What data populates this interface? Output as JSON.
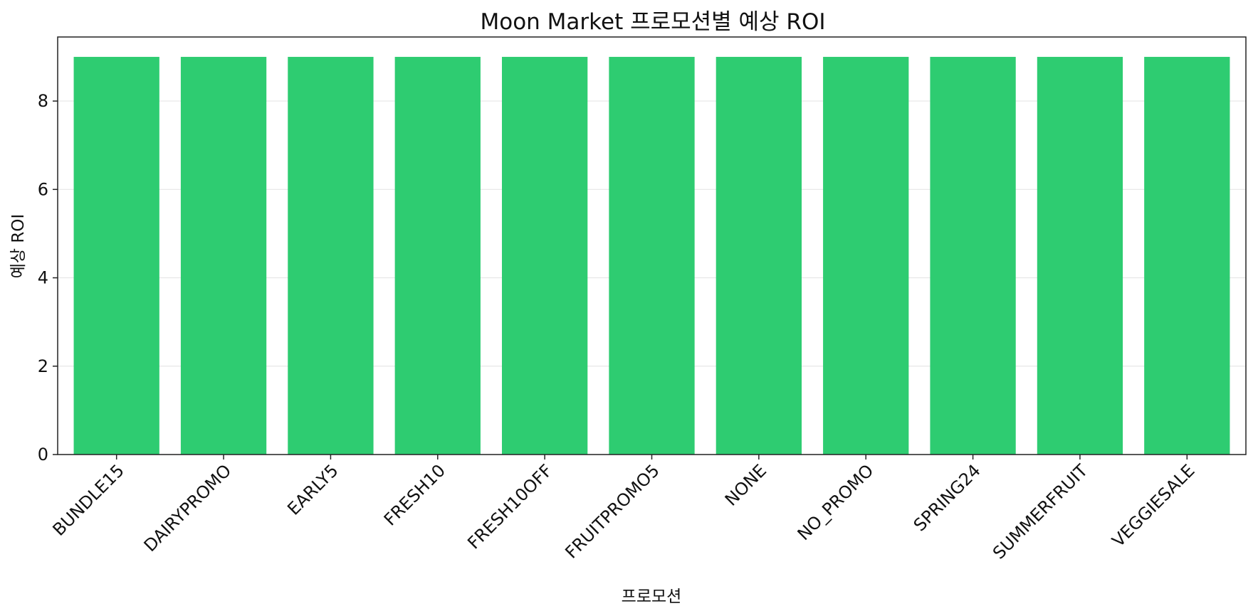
{
  "chart_data": {
    "type": "bar",
    "title": "Moon Market 프로모션별 예상 ROI",
    "xlabel": "프로모션",
    "ylabel": "예상 ROI",
    "categories": [
      "BUNDLE15",
      "DAIRYPROMO",
      "EARLY5",
      "FRESH10",
      "FRESH10OFF",
      "FRUITPROMO5",
      "NONE",
      "NO_PROMO",
      "SPRING24",
      "SUMMERFRUIT",
      "VEGGIESALE"
    ],
    "values": [
      9,
      9,
      9,
      9,
      9,
      9,
      9,
      9,
      9,
      9,
      9
    ],
    "ylim": [
      0,
      9.45
    ],
    "yticks": [
      0,
      2,
      4,
      6,
      8
    ],
    "grid": true,
    "bar_color": "#2ecc71",
    "grid_color": "#e6e6e6",
    "axis_color": "#222222"
  }
}
